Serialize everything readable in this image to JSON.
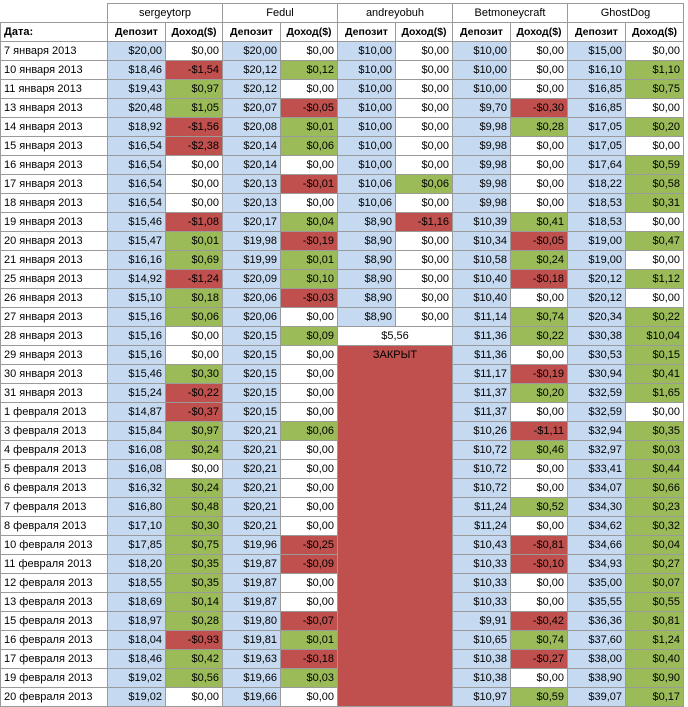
{
  "header": {
    "date_label": "Дата:",
    "deposit_label": "Депозит",
    "income_label": "Доход($)",
    "players": [
      "sergeytorp",
      "Fedul",
      "andreyobuh",
      "Betmoneycraft",
      "GhostDog"
    ]
  },
  "closed_label": "ЗАКРЫТ",
  "closed_value": "$5,56",
  "colors": {
    "deposit": "#c5d9f1",
    "positive": "#9bbb59",
    "negative": "#c0504d",
    "zero": "#ffffff"
  },
  "rows": [
    {
      "date": "7 января 2013",
      "p": [
        [
          "$20,00",
          "$0,00"
        ],
        [
          "$20,00",
          "$0,00"
        ],
        [
          "$10,00",
          "$0,00"
        ],
        [
          "$10,00",
          "$0,00"
        ],
        [
          "$15,00",
          "$0,00"
        ]
      ]
    },
    {
      "date": "10 января 2013",
      "p": [
        [
          "$18,46",
          "-$1,54"
        ],
        [
          "$20,12",
          "$0,12"
        ],
        [
          "$10,00",
          "$0,00"
        ],
        [
          "$10,00",
          "$0,00"
        ],
        [
          "$16,10",
          "$1,10"
        ]
      ]
    },
    {
      "date": "11 января 2013",
      "p": [
        [
          "$19,43",
          "$0,97"
        ],
        [
          "$20,12",
          "$0,00"
        ],
        [
          "$10,00",
          "$0,00"
        ],
        [
          "$10,00",
          "$0,00"
        ],
        [
          "$16,85",
          "$0,75"
        ]
      ]
    },
    {
      "date": "13 января 2013",
      "p": [
        [
          "$20,48",
          "$1,05"
        ],
        [
          "$20,07",
          "-$0,05"
        ],
        [
          "$10,00",
          "$0,00"
        ],
        [
          "$9,70",
          "-$0,30"
        ],
        [
          "$16,85",
          "$0,00"
        ]
      ]
    },
    {
      "date": "14 января 2013",
      "p": [
        [
          "$18,92",
          "-$1,56"
        ],
        [
          "$20,08",
          "$0,01"
        ],
        [
          "$10,00",
          "$0,00"
        ],
        [
          "$9,98",
          "$0,28"
        ],
        [
          "$17,05",
          "$0,20"
        ]
      ]
    },
    {
      "date": "15 января 2013",
      "p": [
        [
          "$16,54",
          "-$2,38"
        ],
        [
          "$20,14",
          "$0,06"
        ],
        [
          "$10,00",
          "$0,00"
        ],
        [
          "$9,98",
          "$0,00"
        ],
        [
          "$17,05",
          "$0,00"
        ]
      ]
    },
    {
      "date": "16 января 2013",
      "p": [
        [
          "$16,54",
          "$0,00"
        ],
        [
          "$20,14",
          "$0,00"
        ],
        [
          "$10,00",
          "$0,00"
        ],
        [
          "$9,98",
          "$0,00"
        ],
        [
          "$17,64",
          "$0,59"
        ]
      ]
    },
    {
      "date": "17 января 2013",
      "p": [
        [
          "$16,54",
          "$0,00"
        ],
        [
          "$20,13",
          "-$0,01"
        ],
        [
          "$10,06",
          "$0,06"
        ],
        [
          "$9,98",
          "$0,00"
        ],
        [
          "$18,22",
          "$0,58"
        ]
      ]
    },
    {
      "date": "18 января 2013",
      "p": [
        [
          "$16,54",
          "$0,00"
        ],
        [
          "$20,13",
          "$0,00"
        ],
        [
          "$10,06",
          "$0,00"
        ],
        [
          "$9,98",
          "$0,00"
        ],
        [
          "$18,53",
          "$0,31"
        ]
      ]
    },
    {
      "date": "19 января 2013",
      "p": [
        [
          "$15,46",
          "-$1,08"
        ],
        [
          "$20,17",
          "$0,04"
        ],
        [
          "$8,90",
          "-$1,16"
        ],
        [
          "$10,39",
          "$0,41"
        ],
        [
          "$18,53",
          "$0,00"
        ]
      ]
    },
    {
      "date": "20 января 2013",
      "p": [
        [
          "$15,47",
          "$0,01"
        ],
        [
          "$19,98",
          "-$0,19"
        ],
        [
          "$8,90",
          "$0,00"
        ],
        [
          "$10,34",
          "-$0,05"
        ],
        [
          "$19,00",
          "$0,47"
        ]
      ]
    },
    {
      "date": "21 января 2013",
      "p": [
        [
          "$16,16",
          "$0,69"
        ],
        [
          "$19,99",
          "$0,01"
        ],
        [
          "$8,90",
          "$0,00"
        ],
        [
          "$10,58",
          "$0,24"
        ],
        [
          "$19,00",
          "$0,00"
        ]
      ]
    },
    {
      "date": "25 января 2013",
      "p": [
        [
          "$14,92",
          "-$1,24"
        ],
        [
          "$20,09",
          "$0,10"
        ],
        [
          "$8,90",
          "$0,00"
        ],
        [
          "$10,40",
          "-$0,18"
        ],
        [
          "$20,12",
          "$1,12"
        ]
      ]
    },
    {
      "date": "26 января 2013",
      "p": [
        [
          "$15,10",
          "$0,18"
        ],
        [
          "$20,06",
          "-$0,03"
        ],
        [
          "$8,90",
          "$0,00"
        ],
        [
          "$10,40",
          "$0,00"
        ],
        [
          "$20,12",
          "$0,00"
        ]
      ]
    },
    {
      "date": "27 января 2013",
      "p": [
        [
          "$15,16",
          "$0,06"
        ],
        [
          "$20,06",
          "$0,00"
        ],
        [
          "$8,90",
          "$0,00"
        ],
        [
          "$11,14",
          "$0,74"
        ],
        [
          "$20,34",
          "$0,22"
        ]
      ]
    },
    {
      "date": "28 января 2013",
      "p": [
        [
          "$15,16",
          "$0,00"
        ],
        [
          "$20,15",
          "$0,09"
        ],
        null,
        [
          "$11,36",
          "$0,22"
        ],
        [
          "$30,38",
          "$10,04"
        ]
      ]
    },
    {
      "date": "29 января 2013",
      "p": [
        [
          "$15,16",
          "$0,00"
        ],
        [
          "$20,15",
          "$0,00"
        ],
        null,
        [
          "$11,36",
          "$0,00"
        ],
        [
          "$30,53",
          "$0,15"
        ]
      ]
    },
    {
      "date": "30 января 2013",
      "p": [
        [
          "$15,46",
          "$0,30"
        ],
        [
          "$20,15",
          "$0,00"
        ],
        null,
        [
          "$11,17",
          "-$0,19"
        ],
        [
          "$30,94",
          "$0,41"
        ]
      ]
    },
    {
      "date": "31 января 2013",
      "p": [
        [
          "$15,24",
          "-$0,22"
        ],
        [
          "$20,15",
          "$0,00"
        ],
        null,
        [
          "$11,37",
          "$0,20"
        ],
        [
          "$32,59",
          "$1,65"
        ]
      ]
    },
    {
      "date": "1 февраля 2013",
      "p": [
        [
          "$14,87",
          "-$0,37"
        ],
        [
          "$20,15",
          "$0,00"
        ],
        null,
        [
          "$11,37",
          "$0,00"
        ],
        [
          "$32,59",
          "$0,00"
        ]
      ]
    },
    {
      "date": "3 февраля 2013",
      "p": [
        [
          "$15,84",
          "$0,97"
        ],
        [
          "$20,21",
          "$0,06"
        ],
        null,
        [
          "$10,26",
          "-$1,11"
        ],
        [
          "$32,94",
          "$0,35"
        ]
      ]
    },
    {
      "date": "4 февраля 2013",
      "p": [
        [
          "$16,08",
          "$0,24"
        ],
        [
          "$20,21",
          "$0,00"
        ],
        null,
        [
          "$10,72",
          "$0,46"
        ],
        [
          "$32,97",
          "$0,03"
        ]
      ]
    },
    {
      "date": "5 февраля 2013",
      "p": [
        [
          "$16,08",
          "$0,00"
        ],
        [
          "$20,21",
          "$0,00"
        ],
        null,
        [
          "$10,72",
          "$0,00"
        ],
        [
          "$33,41",
          "$0,44"
        ]
      ]
    },
    {
      "date": "6 февраля 2013",
      "p": [
        [
          "$16,32",
          "$0,24"
        ],
        [
          "$20,21",
          "$0,00"
        ],
        null,
        [
          "$10,72",
          "$0,00"
        ],
        [
          "$34,07",
          "$0,66"
        ]
      ]
    },
    {
      "date": "7 февраля 2013",
      "p": [
        [
          "$16,80",
          "$0,48"
        ],
        [
          "$20,21",
          "$0,00"
        ],
        null,
        [
          "$11,24",
          "$0,52"
        ],
        [
          "$34,30",
          "$0,23"
        ]
      ]
    },
    {
      "date": "8 февраля 2013",
      "p": [
        [
          "$17,10",
          "$0,30"
        ],
        [
          "$20,21",
          "$0,00"
        ],
        null,
        [
          "$11,24",
          "$0,00"
        ],
        [
          "$34,62",
          "$0,32"
        ]
      ]
    },
    {
      "date": "10 февраля 2013",
      "p": [
        [
          "$17,85",
          "$0,75"
        ],
        [
          "$19,96",
          "-$0,25"
        ],
        null,
        [
          "$10,43",
          "-$0,81"
        ],
        [
          "$34,66",
          "$0,04"
        ]
      ]
    },
    {
      "date": "11 февраля 2013",
      "p": [
        [
          "$18,20",
          "$0,35"
        ],
        [
          "$19,87",
          "-$0,09"
        ],
        null,
        [
          "$10,33",
          "-$0,10"
        ],
        [
          "$34,93",
          "$0,27"
        ]
      ]
    },
    {
      "date": "12 февраля 2013",
      "p": [
        [
          "$18,55",
          "$0,35"
        ],
        [
          "$19,87",
          "$0,00"
        ],
        null,
        [
          "$10,33",
          "$0,00"
        ],
        [
          "$35,00",
          "$0,07"
        ]
      ]
    },
    {
      "date": "13 февраля 2013",
      "p": [
        [
          "$18,69",
          "$0,14"
        ],
        [
          "$19,87",
          "$0,00"
        ],
        null,
        [
          "$10,33",
          "$0,00"
        ],
        [
          "$35,55",
          "$0,55"
        ]
      ]
    },
    {
      "date": "15 февраля 2013",
      "p": [
        [
          "$18,97",
          "$0,28"
        ],
        [
          "$19,80",
          "-$0,07"
        ],
        null,
        [
          "$9,91",
          "-$0,42"
        ],
        [
          "$36,36",
          "$0,81"
        ]
      ]
    },
    {
      "date": "16 февраля 2013",
      "p": [
        [
          "$18,04",
          "-$0,93"
        ],
        [
          "$19,81",
          "$0,01"
        ],
        null,
        [
          "$10,65",
          "$0,74"
        ],
        [
          "$37,60",
          "$1,24"
        ]
      ]
    },
    {
      "date": "17 февраля 2013",
      "p": [
        [
          "$18,46",
          "$0,42"
        ],
        [
          "$19,63",
          "-$0,18"
        ],
        null,
        [
          "$10,38",
          "-$0,27"
        ],
        [
          "$38,00",
          "$0,40"
        ]
      ]
    },
    {
      "date": "19 февраля 2013",
      "p": [
        [
          "$19,02",
          "$0,56"
        ],
        [
          "$19,66",
          "$0,03"
        ],
        null,
        [
          "$10,38",
          "$0,00"
        ],
        [
          "$38,90",
          "$0,90"
        ]
      ]
    },
    {
      "date": "20 февраля 2013",
      "p": [
        [
          "$19,02",
          "$0,00"
        ],
        [
          "$19,66",
          "$0,00"
        ],
        null,
        [
          "$10,97",
          "$0,59"
        ],
        [
          "$39,07",
          "$0,17"
        ]
      ]
    }
  ]
}
